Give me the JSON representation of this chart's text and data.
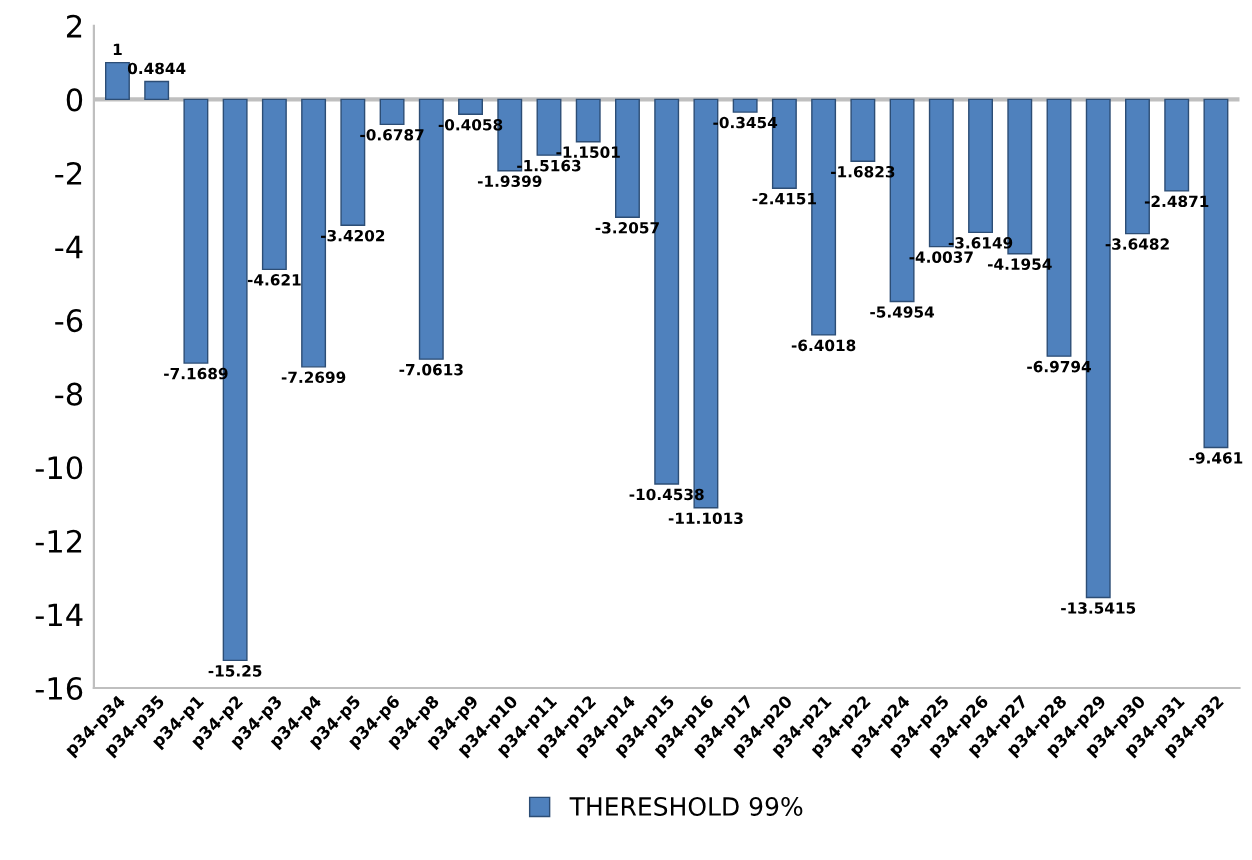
{
  "chart_data": {
    "type": "bar",
    "categories": [
      "p34-p34",
      "p34-p35",
      "p34-p1",
      "p34-p2",
      "p34-p3",
      "p34-p4",
      "p34-p5",
      "p34-p6",
      "p34-p8",
      "p34-p9",
      "p34-p10",
      "p34-p11",
      "p34-p12",
      "p34-p14",
      "p34-p15",
      "p34-p16",
      "p34-p17",
      "p34-p20",
      "p34-p21",
      "p34-p22",
      "p34-p24",
      "p34-p25",
      "p34-p26",
      "p34-p27",
      "p34-p28",
      "p34-p29",
      "p34-p30",
      "p34-p31",
      "p34-p32"
    ],
    "series": [
      {
        "name": "THERESHOLD 99%",
        "color": "#4f81bd",
        "values": [
          1,
          0.4844,
          -7.1689,
          -15.25,
          -4.621,
          -7.2699,
          -3.4202,
          -0.6787,
          -7.0613,
          -0.4058,
          -1.9399,
          -1.5163,
          -1.1501,
          -3.2057,
          -10.4538,
          -11.1013,
          -0.3454,
          -2.4151,
          -6.4018,
          -1.6823,
          -5.4954,
          -4.0037,
          -3.6149,
          -4.1954,
          -6.9794,
          -13.5415,
          -3.6482,
          -2.4871,
          -9.461
        ]
      }
    ],
    "ylim": [
      -16,
      2
    ],
    "yticks": [
      -16,
      -14,
      -12,
      -10,
      -8,
      -6,
      -4,
      -2,
      0,
      2
    ],
    "ref_lines": [
      {
        "axis": "y",
        "value": 0,
        "color": "#bfbfbf"
      }
    ],
    "data_labels": true,
    "legend": "bottom",
    "grid": false
  }
}
